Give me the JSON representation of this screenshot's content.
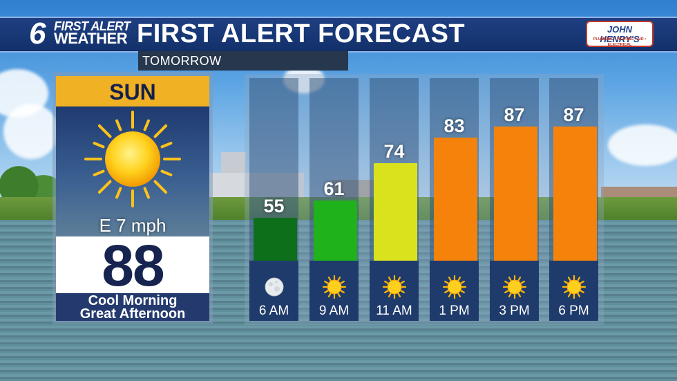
{
  "header": {
    "logo_number": "6",
    "logo_line1": "FIRST ALERT",
    "logo_line2": "WEATHER",
    "title": "FIRST ALERT FORECAST",
    "sponsor_name": "JOHN HENRY'S",
    "sponsor_tagline": "PLUMBING • HEATING • AIR • ELECTRICAL"
  },
  "period_label": "TOMORROW",
  "day": {
    "name": "SUN",
    "wind": "E 7 mph",
    "high": "88",
    "description_line1": "Cool Morning",
    "description_line2": "Great Afternoon",
    "icon": "sun-icon"
  },
  "hourly": [
    {
      "time": "6 AM",
      "temp": "55",
      "color": "#0e6f1a",
      "icon": "moon-icon",
      "level": 55
    },
    {
      "time": "9 AM",
      "temp": "61",
      "color": "#1fb21a",
      "icon": "sun-icon",
      "level": 61
    },
    {
      "time": "11 AM",
      "temp": "74",
      "color": "#d9e21c",
      "icon": "sun-icon",
      "level": 74
    },
    {
      "time": "1 PM",
      "temp": "83",
      "color": "#f5820a",
      "icon": "sun-icon",
      "level": 83
    },
    {
      "time": "3 PM",
      "temp": "87",
      "color": "#f5820a",
      "icon": "sun-icon",
      "level": 87
    },
    {
      "time": "6 PM",
      "temp": "87",
      "color": "#f5820a",
      "icon": "sun-icon",
      "level": 87
    }
  ]
}
